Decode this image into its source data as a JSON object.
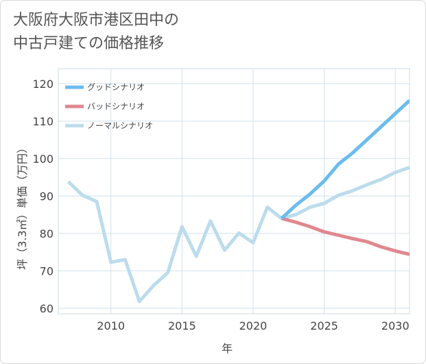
{
  "header": {
    "title_line1": "大阪府大阪市港区田中の",
    "title_line2": "中古戸建ての価格推移"
  },
  "chart_data": {
    "type": "line",
    "xlabel": "年",
    "ylabel": "坪（3.3㎡）単価（万円）",
    "xlim": [
      2006.3,
      2031
    ],
    "ylim": [
      58.5,
      124
    ],
    "x_ticks": [
      2010,
      2015,
      2020,
      2025,
      2030
    ],
    "y_ticks": [
      60,
      70,
      80,
      90,
      100,
      110,
      120
    ],
    "grid": true,
    "legend_position": "top-left",
    "series": [
      {
        "name": "グッドシナリオ",
        "color": "#6cbcec",
        "x": [
          2022,
          2023,
          2024,
          2025,
          2026,
          2027,
          2028,
          2029,
          2030,
          2031
        ],
        "y": [
          84.0,
          87.5,
          90.5,
          94.0,
          98.5,
          101.5,
          105.0,
          108.5,
          112.0,
          115.5
        ]
      },
      {
        "name": "バッドシナリオ",
        "color": "#e0888f",
        "x": [
          2022,
          2023,
          2024,
          2025,
          2026,
          2027,
          2028,
          2029,
          2030,
          2031
        ],
        "y": [
          84.0,
          83.0,
          81.8,
          80.4,
          79.5,
          78.6,
          77.8,
          76.4,
          75.3,
          74.4
        ]
      },
      {
        "name": "ノーマルシナリオ",
        "color": "#bcdcec",
        "x": [
          2007,
          2008,
          2009,
          2010,
          2011,
          2012,
          2013,
          2014,
          2015,
          2016,
          2017,
          2018,
          2019,
          2020,
          2021,
          2022,
          2023,
          2024,
          2025,
          2026,
          2027,
          2028,
          2029,
          2030,
          2031
        ],
        "y": [
          93.8,
          90.2,
          88.5,
          72.3,
          73.0,
          61.8,
          66.1,
          69.5,
          81.8,
          73.9,
          83.3,
          75.5,
          80.1,
          77.5,
          87.0,
          84.0,
          85.0,
          87.0,
          88.0,
          90.2,
          91.4,
          93.0,
          94.4,
          96.3,
          97.6
        ]
      }
    ]
  }
}
